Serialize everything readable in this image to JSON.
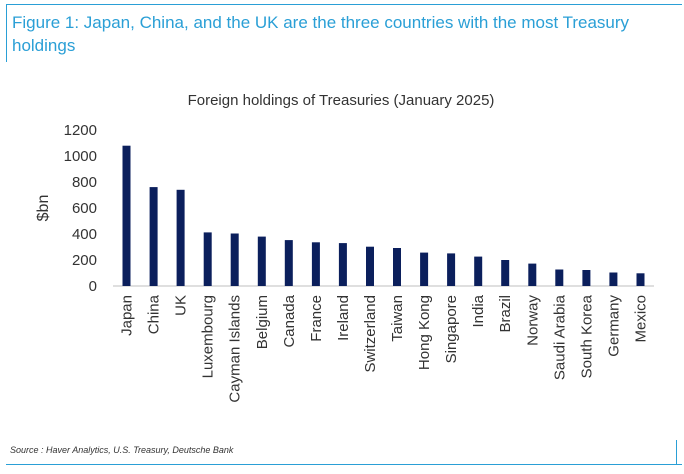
{
  "figure": {
    "title": "Figure 1: Japan, China, and the UK are the three countries with the most Treasury holdings",
    "source": "Source : Haver Analytics, U.S. Treasury, Deutsche Bank"
  },
  "chart_data": {
    "type": "bar",
    "title": "Foreign holdings of Treasuries (January 2025)",
    "ylabel": "$bn",
    "xlabel": "",
    "ylim": [
      0,
      1200
    ],
    "yticks": [
      0,
      200,
      400,
      600,
      800,
      1000,
      1200
    ],
    "grid": false,
    "legend": "none",
    "bar_color": "#0b1f5c",
    "categories": [
      "Japan",
      "China",
      "UK",
      "Luxembourg",
      "Cayman Islands",
      "Belgium",
      "Canada",
      "France",
      "Ireland",
      "Switzerland",
      "Taiwan",
      "Hong Kong",
      "Singapore",
      "India",
      "Brazil",
      "Norway",
      "Saudi Arabia",
      "South Korea",
      "Germany",
      "Mexico"
    ],
    "values": [
      1079,
      761,
      740,
      412,
      404,
      380,
      353,
      336,
      330,
      302,
      292,
      257,
      251,
      226,
      200,
      172,
      127,
      123,
      104,
      98
    ]
  }
}
